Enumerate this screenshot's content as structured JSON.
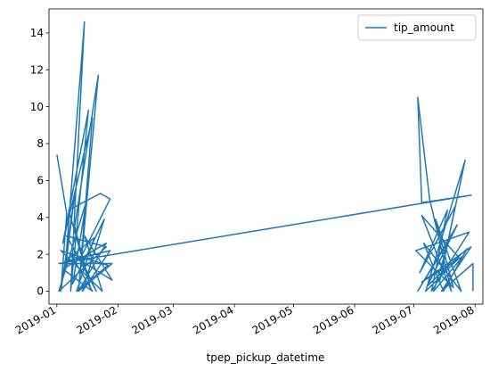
{
  "chart_data": {
    "type": "line",
    "title": "",
    "xlabel": "tpep_pickup_datetime",
    "ylabel": "",
    "xlim": [
      "2018-12-28",
      "2019-08-05"
    ],
    "ylim": [
      -0.7,
      15.3
    ],
    "x_ticks": [
      "2019-01",
      "2019-02",
      "2019-03",
      "2019-04",
      "2019-05",
      "2019-06",
      "2019-07",
      "2019-08"
    ],
    "y_ticks": [
      0,
      2,
      4,
      6,
      8,
      10,
      12,
      14
    ],
    "legend": {
      "position": "top-right",
      "entries": [
        "tip_amount"
      ]
    },
    "grid": false,
    "series": [
      {
        "name": "tip_amount",
        "color": "#1f77b4",
        "points": [
          [
            "2019-01-01",
            7.4
          ],
          [
            "2019-01-06",
            4.2
          ],
          [
            "2019-01-03",
            0.0
          ],
          [
            "2019-01-10",
            5.2
          ],
          [
            "2019-01-05",
            1.0
          ],
          [
            "2019-01-15",
            14.6
          ],
          [
            "2019-01-08",
            0.0
          ],
          [
            "2019-01-17",
            9.8
          ],
          [
            "2019-01-04",
            2.6
          ],
          [
            "2019-01-19",
            9.4
          ],
          [
            "2019-01-12",
            0.0
          ],
          [
            "2019-01-22",
            11.7
          ],
          [
            "2019-01-10",
            3.5
          ],
          [
            "2019-01-18",
            0.2
          ],
          [
            "2019-01-07",
            4.4
          ],
          [
            "2019-01-23",
            5.3
          ],
          [
            "2019-01-28",
            5.0
          ],
          [
            "2019-01-13",
            1.8
          ],
          [
            "2019-01-21",
            0.0
          ],
          [
            "2019-01-06",
            3.0
          ],
          [
            "2019-01-26",
            2.4
          ],
          [
            "2019-01-02",
            0.0
          ],
          [
            "2019-01-16",
            4.9
          ],
          [
            "2019-01-09",
            0.4
          ],
          [
            "2019-01-25",
            3.9
          ],
          [
            "2019-01-14",
            0.0
          ],
          [
            "2019-01-28",
            2.2
          ],
          [
            "2019-01-05",
            1.6
          ],
          [
            "2019-01-20",
            2.9
          ],
          [
            "2019-01-11",
            0.0
          ],
          [
            "2019-01-27",
            1.4
          ],
          [
            "2019-01-03",
            2.2
          ],
          [
            "2019-01-24",
            0.0
          ],
          [
            "2019-01-15",
            3.0
          ],
          [
            "2019-01-29",
            0.6
          ],
          [
            "2019-01-08",
            2.0
          ],
          [
            "2019-01-19",
            0.0
          ],
          [
            "2019-01-04",
            1.2
          ],
          [
            "2019-01-26",
            2.6
          ],
          [
            "2019-01-12",
            0.0
          ],
          [
            "2019-01-29",
            1.5
          ],
          [
            "2019-01-02",
            1.5
          ],
          [
            "2019-01-30",
            2.0
          ],
          [
            "2019-07-30",
            5.2
          ],
          [
            "2019-07-05",
            4.8
          ],
          [
            "2019-07-03",
            10.5
          ],
          [
            "2019-07-09",
            5.0
          ],
          [
            "2019-07-20",
            0.0
          ],
          [
            "2019-07-05",
            4.1
          ],
          [
            "2019-07-24",
            1.8
          ],
          [
            "2019-07-07",
            0.0
          ],
          [
            "2019-07-27",
            7.1
          ],
          [
            "2019-07-14",
            0.5
          ],
          [
            "2019-07-22",
            4.6
          ],
          [
            "2019-07-04",
            1.0
          ],
          [
            "2019-07-18",
            4.4
          ],
          [
            "2019-07-10",
            0.0
          ],
          [
            "2019-07-29",
            3.2
          ],
          [
            "2019-07-02",
            2.2
          ],
          [
            "2019-07-21",
            0.2
          ],
          [
            "2019-07-12",
            3.9
          ],
          [
            "2019-07-25",
            0.0
          ],
          [
            "2019-07-06",
            2.6
          ],
          [
            "2019-07-16",
            0.0
          ],
          [
            "2019-07-28",
            2.3
          ],
          [
            "2019-07-08",
            0.3
          ],
          [
            "2019-07-23",
            3.6
          ],
          [
            "2019-07-03",
            0.0
          ],
          [
            "2019-07-19",
            2.8
          ],
          [
            "2019-07-11",
            0.0
          ],
          [
            "2019-07-26",
            1.9
          ],
          [
            "2019-07-05",
            0.5
          ],
          [
            "2019-07-30",
            2.4
          ],
          [
            "2019-07-15",
            0.0
          ],
          [
            "2019-07-31",
            1.5
          ],
          [
            "2019-07-31",
            0.0
          ]
        ]
      }
    ]
  }
}
